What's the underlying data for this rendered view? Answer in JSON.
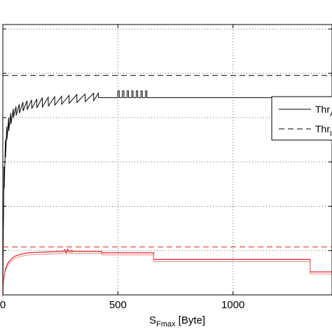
{
  "chart_data": {
    "type": "line",
    "xlabel": {
      "main": "S",
      "sub": "Fmax",
      "unit": " [Byte]"
    },
    "ylabel": "",
    "xlim": [
      0,
      1430
    ],
    "ylim": [
      0,
      6.1
    ],
    "x_ticks": [
      0,
      500,
      1000
    ],
    "x_tick_labels": [
      "0",
      "500",
      "1000"
    ],
    "y_grid": [
      1,
      2,
      3,
      4,
      5,
      6
    ],
    "grid": true,
    "legend": {
      "placement": "right",
      "entries": [
        {
          "main": "Thr",
          "sub": "A",
          "style": "solid"
        },
        {
          "main": "Thr",
          "sub": "I",
          "style": "dashed"
        }
      ]
    },
    "series": [
      {
        "style": "solid",
        "color": "#000000",
        "plateau": 4.45,
        "plateau_start": 420,
        "sawtooth_end": 415,
        "pulses": {
          "x": [
            500,
            520,
            540,
            560,
            580,
            600,
            620
          ],
          "top": 4.6
        }
      },
      {
        "style": "dashed",
        "color": "#000000",
        "value": 4.95
      },
      {
        "style": "solid",
        "color": "#d62728",
        "steps": [
          {
            "x": 300,
            "y": 0.98
          },
          {
            "x": 430,
            "y": 0.95
          },
          {
            "x": 655,
            "y": 0.8
          },
          {
            "x": 1335,
            "y": 0.52
          },
          {
            "x": 1430,
            "y": 0.52
          }
        ]
      },
      {
        "style": "dashed",
        "color": "#d62728",
        "value": 1.08
      }
    ]
  }
}
